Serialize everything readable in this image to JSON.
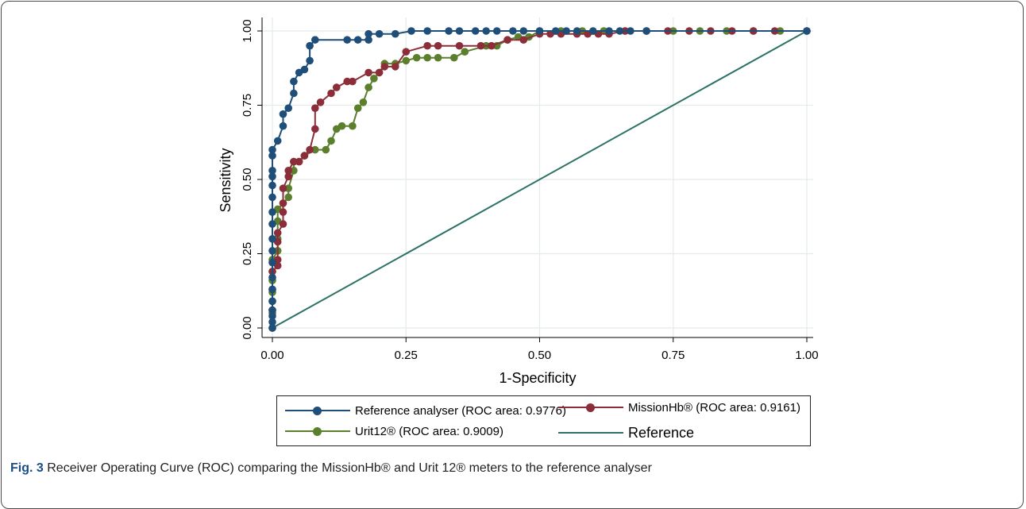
{
  "caption": {
    "label": "Fig. 3",
    "text": "Receiver Operating Curve (ROC) comparing the MissionHb® and Urit 12® meters to the reference analyser"
  },
  "chart_data": {
    "type": "line",
    "xlabel": "1-Specificity",
    "ylabel": "Sensitivity",
    "xlim": [
      0,
      1
    ],
    "ylim": [
      0,
      1
    ],
    "xticks": [
      "0.00",
      "0.25",
      "0.50",
      "0.75",
      "1.00"
    ],
    "yticks": [
      "0.00",
      "0.25",
      "0.50",
      "0.75",
      "1.00"
    ],
    "grid": true,
    "legend_position": "bottom",
    "series": [
      {
        "name": "Reference analyser (ROC area: 0.9776)",
        "color": "#1f4e79",
        "markers": true,
        "points": [
          [
            0,
            0
          ],
          [
            0,
            0.02
          ],
          [
            0,
            0.04
          ],
          [
            0,
            0.06
          ],
          [
            0,
            0.09
          ],
          [
            0,
            0.13
          ],
          [
            0,
            0.17
          ],
          [
            0,
            0.22
          ],
          [
            0,
            0.26
          ],
          [
            0,
            0.3
          ],
          [
            0,
            0.35
          ],
          [
            0,
            0.39
          ],
          [
            0,
            0.44
          ],
          [
            0,
            0.48
          ],
          [
            0,
            0.51
          ],
          [
            0,
            0.53
          ],
          [
            0,
            0.58
          ],
          [
            0,
            0.6
          ],
          [
            0.01,
            0.63
          ],
          [
            0.02,
            0.68
          ],
          [
            0.02,
            0.72
          ],
          [
            0.03,
            0.74
          ],
          [
            0.04,
            0.79
          ],
          [
            0.04,
            0.83
          ],
          [
            0.05,
            0.86
          ],
          [
            0.06,
            0.87
          ],
          [
            0.07,
            0.9
          ],
          [
            0.07,
            0.95
          ],
          [
            0.08,
            0.97
          ],
          [
            0.14,
            0.97
          ],
          [
            0.16,
            0.97
          ],
          [
            0.18,
            0.97
          ],
          [
            0.18,
            0.99
          ],
          [
            0.2,
            0.99
          ],
          [
            0.23,
            0.99
          ],
          [
            0.26,
            1.0
          ],
          [
            0.29,
            1.0
          ],
          [
            0.33,
            1.0
          ],
          [
            0.35,
            1.0
          ],
          [
            0.38,
            1.0
          ],
          [
            0.4,
            1.0
          ],
          [
            0.42,
            1.0
          ],
          [
            0.45,
            1.0
          ],
          [
            0.47,
            1.0
          ],
          [
            0.5,
            1.0
          ],
          [
            0.53,
            1.0
          ],
          [
            0.55,
            1.0
          ],
          [
            0.57,
            1.0
          ],
          [
            0.6,
            1.0
          ],
          [
            0.63,
            1.0
          ],
          [
            0.65,
            1.0
          ],
          [
            0.67,
            1.0
          ],
          [
            0.7,
            1.0
          ],
          [
            1,
            1.0
          ]
        ]
      },
      {
        "name": "MissionHb® (ROC area: 0.9161)",
        "color": "#8b2e3a",
        "markers": true,
        "points": [
          [
            0,
            0
          ],
          [
            0,
            0.06
          ],
          [
            0,
            0.13
          ],
          [
            0,
            0.19
          ],
          [
            0.01,
            0.21
          ],
          [
            0.01,
            0.23
          ],
          [
            0.01,
            0.29
          ],
          [
            0.01,
            0.32
          ],
          [
            0.02,
            0.35
          ],
          [
            0.02,
            0.39
          ],
          [
            0.02,
            0.42
          ],
          [
            0.02,
            0.47
          ],
          [
            0.03,
            0.51
          ],
          [
            0.03,
            0.53
          ],
          [
            0.04,
            0.56
          ],
          [
            0.05,
            0.56
          ],
          [
            0.06,
            0.58
          ],
          [
            0.07,
            0.6
          ],
          [
            0.08,
            0.67
          ],
          [
            0.08,
            0.74
          ],
          [
            0.09,
            0.76
          ],
          [
            0.11,
            0.79
          ],
          [
            0.12,
            0.81
          ],
          [
            0.14,
            0.83
          ],
          [
            0.15,
            0.83
          ],
          [
            0.18,
            0.86
          ],
          [
            0.2,
            0.86
          ],
          [
            0.21,
            0.88
          ],
          [
            0.23,
            0.88
          ],
          [
            0.25,
            0.93
          ],
          [
            0.29,
            0.95
          ],
          [
            0.31,
            0.95
          ],
          [
            0.35,
            0.95
          ],
          [
            0.39,
            0.95
          ],
          [
            0.41,
            0.95
          ],
          [
            0.44,
            0.97
          ],
          [
            0.47,
            0.97
          ],
          [
            0.5,
            0.99
          ],
          [
            0.52,
            0.99
          ],
          [
            0.54,
            0.99
          ],
          [
            0.57,
            0.99
          ],
          [
            0.59,
            0.99
          ],
          [
            0.61,
            0.99
          ],
          [
            0.63,
            0.99
          ],
          [
            0.66,
            1.0
          ],
          [
            0.7,
            1.0
          ],
          [
            0.74,
            1.0
          ],
          [
            0.78,
            1.0
          ],
          [
            0.82,
            1.0
          ],
          [
            0.86,
            1.0
          ],
          [
            0.9,
            1.0
          ],
          [
            0.94,
            1.0
          ],
          [
            1,
            1.0
          ]
        ]
      },
      {
        "name": "Urit12® (ROC area: 0.9009)",
        "color": "#5c7f2d",
        "markers": true,
        "points": [
          [
            0,
            0
          ],
          [
            0,
            0.05
          ],
          [
            0,
            0.09
          ],
          [
            0,
            0.12
          ],
          [
            0,
            0.16
          ],
          [
            0,
            0.19
          ],
          [
            0,
            0.23
          ],
          [
            0.01,
            0.26
          ],
          [
            0.01,
            0.3
          ],
          [
            0.01,
            0.36
          ],
          [
            0.01,
            0.4
          ],
          [
            0.02,
            0.42
          ],
          [
            0.03,
            0.44
          ],
          [
            0.03,
            0.47
          ],
          [
            0.04,
            0.53
          ],
          [
            0.04,
            0.56
          ],
          [
            0.05,
            0.56
          ],
          [
            0.06,
            0.58
          ],
          [
            0.08,
            0.6
          ],
          [
            0.1,
            0.6
          ],
          [
            0.11,
            0.63
          ],
          [
            0.12,
            0.67
          ],
          [
            0.13,
            0.68
          ],
          [
            0.15,
            0.68
          ],
          [
            0.16,
            0.74
          ],
          [
            0.17,
            0.76
          ],
          [
            0.18,
            0.81
          ],
          [
            0.19,
            0.84
          ],
          [
            0.2,
            0.86
          ],
          [
            0.21,
            0.89
          ],
          [
            0.23,
            0.89
          ],
          [
            0.25,
            0.9
          ],
          [
            0.27,
            0.91
          ],
          [
            0.29,
            0.91
          ],
          [
            0.31,
            0.91
          ],
          [
            0.34,
            0.91
          ],
          [
            0.36,
            0.93
          ],
          [
            0.4,
            0.95
          ],
          [
            0.42,
            0.95
          ],
          [
            0.44,
            0.97
          ],
          [
            0.46,
            0.98
          ],
          [
            0.48,
            0.98
          ],
          [
            0.5,
            1.0
          ],
          [
            0.54,
            1.0
          ],
          [
            0.58,
            1.0
          ],
          [
            0.62,
            1.0
          ],
          [
            0.66,
            1.0
          ],
          [
            0.7,
            1.0
          ],
          [
            0.75,
            1.0
          ],
          [
            0.8,
            1.0
          ],
          [
            0.85,
            1.0
          ],
          [
            0.9,
            1.0
          ],
          [
            0.95,
            1.0
          ],
          [
            1,
            1.0
          ]
        ]
      },
      {
        "name": "Reference",
        "color": "#2d7266",
        "markers": false,
        "points": [
          [
            0,
            0
          ],
          [
            1,
            1
          ]
        ]
      }
    ]
  }
}
